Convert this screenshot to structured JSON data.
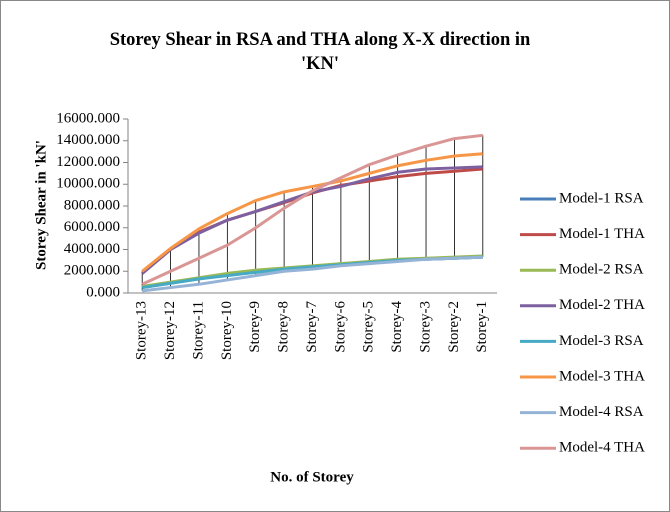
{
  "chart_data": {
    "type": "line",
    "title": "Storey Shear in RSA and THA along X-X direction in 'KN'",
    "x_label": "No. of Storey",
    "y_label": "Storey Shear in 'kN'",
    "categories": [
      "Storey-13",
      "Storey-12",
      "Storey-11",
      "Storey-10",
      "Storey-9",
      "Storey-8",
      "Storey-7",
      "Storey-6",
      "Storey-5",
      "Storey-4",
      "Storey-3",
      "Storey-2",
      "Storey-1"
    ],
    "ylim": [
      0,
      16000
    ],
    "yticks": [
      {
        "value": 0,
        "label": "0.000"
      },
      {
        "value": 2000,
        "label": "2000.000"
      },
      {
        "value": 4000,
        "label": "4000.000"
      },
      {
        "value": 6000,
        "label": "6000.000"
      },
      {
        "value": 8000,
        "label": "8000.000"
      },
      {
        "value": 10000,
        "label": "10000.000"
      },
      {
        "value": 12000,
        "label": "12000.000"
      },
      {
        "value": 14000,
        "label": "14000.000"
      },
      {
        "value": 16000,
        "label": "16000.000"
      }
    ],
    "legend": "right",
    "series": [
      {
        "name": "Model-1 RSA",
        "color": "#4a7ebb",
        "values": [
          500,
          900,
          1300,
          1700,
          2000,
          2200,
          2400,
          2600,
          2800,
          3000,
          3100,
          3200,
          3300
        ]
      },
      {
        "name": "Model-1 THA",
        "color": "#be4b48",
        "values": [
          1800,
          4000,
          5600,
          6700,
          7500,
          8300,
          9200,
          9900,
          10300,
          10700,
          11000,
          11200,
          11400
        ]
      },
      {
        "name": "Model-2 RSA",
        "color": "#98b954",
        "values": [
          600,
          1000,
          1400,
          1800,
          2100,
          2300,
          2500,
          2700,
          2900,
          3100,
          3200,
          3300,
          3400
        ]
      },
      {
        "name": "Model-2 THA",
        "color": "#7d60a0",
        "values": [
          1800,
          4000,
          5500,
          6700,
          7500,
          8400,
          9300,
          9800,
          10500,
          11100,
          11400,
          11500,
          11600
        ]
      },
      {
        "name": "Model-3 RSA",
        "color": "#46aac5",
        "values": [
          500,
          900,
          1300,
          1600,
          1900,
          2200,
          2400,
          2600,
          2800,
          3000,
          3100,
          3200,
          3300
        ]
      },
      {
        "name": "Model-3 THA",
        "color": "#f79646",
        "values": [
          2000,
          4100,
          5900,
          7300,
          8500,
          9300,
          9800,
          10300,
          11000,
          11700,
          12200,
          12600,
          12800
        ]
      },
      {
        "name": "Model-4 RSA",
        "color": "#95b3d7",
        "values": [
          200,
          500,
          800,
          1200,
          1600,
          2000,
          2200,
          2500,
          2700,
          2900,
          3100,
          3200,
          3300
        ]
      },
      {
        "name": "Model-4 THA",
        "color": "#d99694",
        "values": [
          800,
          2000,
          3200,
          4400,
          6000,
          7800,
          9400,
          10600,
          11800,
          12700,
          13500,
          14200,
          14500
        ]
      }
    ]
  }
}
